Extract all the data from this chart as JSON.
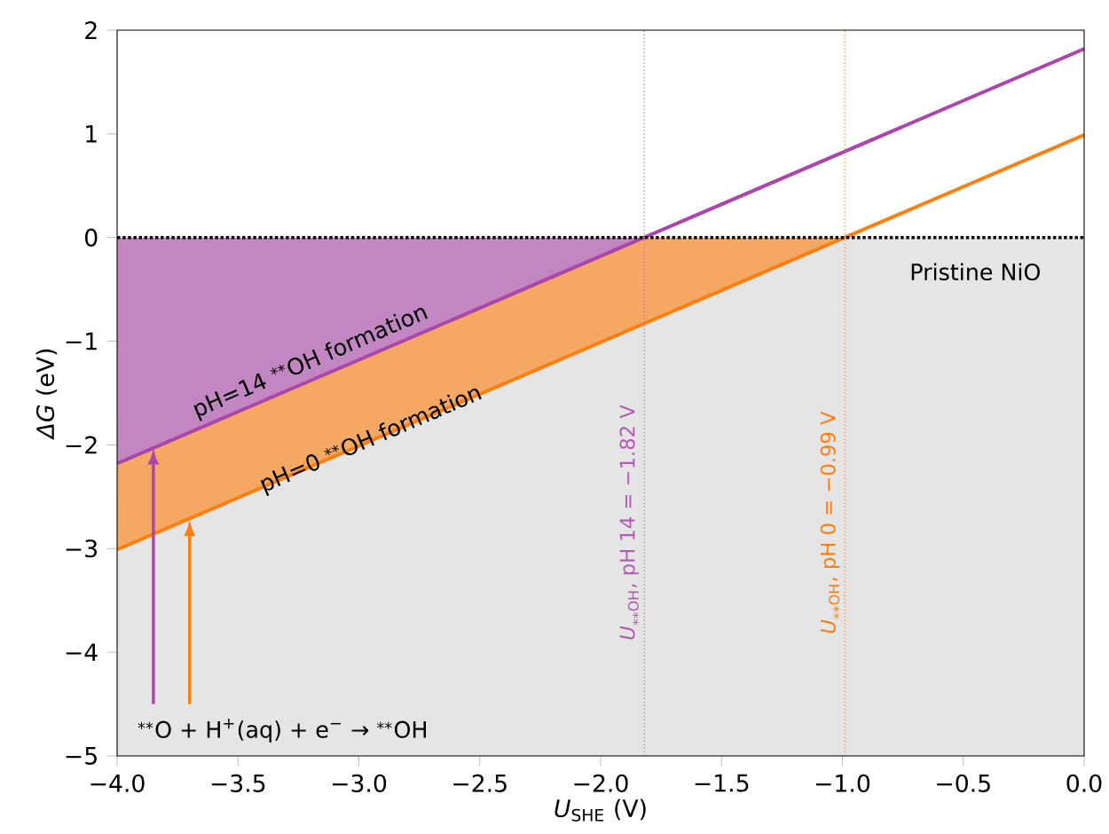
{
  "chart_data": {
    "type": "line",
    "xlabel": "*U*$_{SHE}$ (V)",
    "ylabel": "*ΔG* (eV)",
    "xlim": [
      -4,
      0
    ],
    "ylim": [
      -5,
      2
    ],
    "xticks": [
      {
        "value": -4,
        "label": "−4.0"
      },
      {
        "value": -3.5,
        "label": "−3.5"
      },
      {
        "value": -3,
        "label": "−3.0"
      },
      {
        "value": -2.5,
        "label": "−2.5"
      },
      {
        "value": -2,
        "label": "−2.0"
      },
      {
        "value": -1.5,
        "label": "−1.5"
      },
      {
        "value": -1,
        "label": "−1.0"
      },
      {
        "value": -0.5,
        "label": "−0.5"
      },
      {
        "value": 0,
        "label": "0.0"
      }
    ],
    "yticks": [
      {
        "value": -5,
        "label": "−5"
      },
      {
        "value": -4,
        "label": "−4"
      },
      {
        "value": -3,
        "label": "−3"
      },
      {
        "value": -2,
        "label": "−2"
      },
      {
        "value": -1,
        "label": "−1"
      },
      {
        "value": 0,
        "label": "0"
      },
      {
        "value": 1,
        "label": "1"
      },
      {
        "value": 2,
        "label": "2"
      }
    ],
    "series": [
      {
        "color": "#ff7f0e",
        "x": [
          -4,
          -0.99,
          0
        ],
        "values": [
          -3.01,
          0,
          0.99
        ],
        "lower": [
          -3.01,
          0,
          null
        ],
        "upper": [
          0,
          0,
          null
        ]
      },
      {
        "color": "#ab47ab",
        "x": [
          -4,
          -1.82,
          0
        ],
        "values": [
          -2.18,
          0,
          1.82
        ],
        "lower": [
          -2.18,
          0,
          null
        ],
        "upper": [
          0,
          0,
          null
        ]
      }
    ],
    "bands": [
      {
        "axis": "y",
        "from": -5,
        "to": 0,
        "color": "#e5e5e5"
      }
    ],
    "ref_lines": [
      {
        "axis": "y",
        "value": 0,
        "color": "#000000",
        "line_style": "dotted"
      },
      {
        "axis": "x",
        "value": -1.82,
        "label": "*U*$_{⁎⁎OH}$, pH 14 = −1.82 V",
        "color": "#b45ab4",
        "line_style": "dotted"
      },
      {
        "axis": "x",
        "value": -0.99,
        "label": "*U*$_{⁎⁎OH}$, pH 0 = −0.99 V",
        "color": "#ff7f0e",
        "line_style": "dotted"
      }
    ],
    "annotations": [
      "pH=14 $^{⁎⁎}$OH formation",
      "pH=0 $^{⁎⁎}$OH formation",
      "Pristine NiO",
      {
        "text": "$^{⁎⁎}$O + H$^{+}$(aq) + e$^{−}$  →  $^{⁎⁎}$OH",
        "x": -3.85,
        "y": -2.03
      }
    ]
  }
}
